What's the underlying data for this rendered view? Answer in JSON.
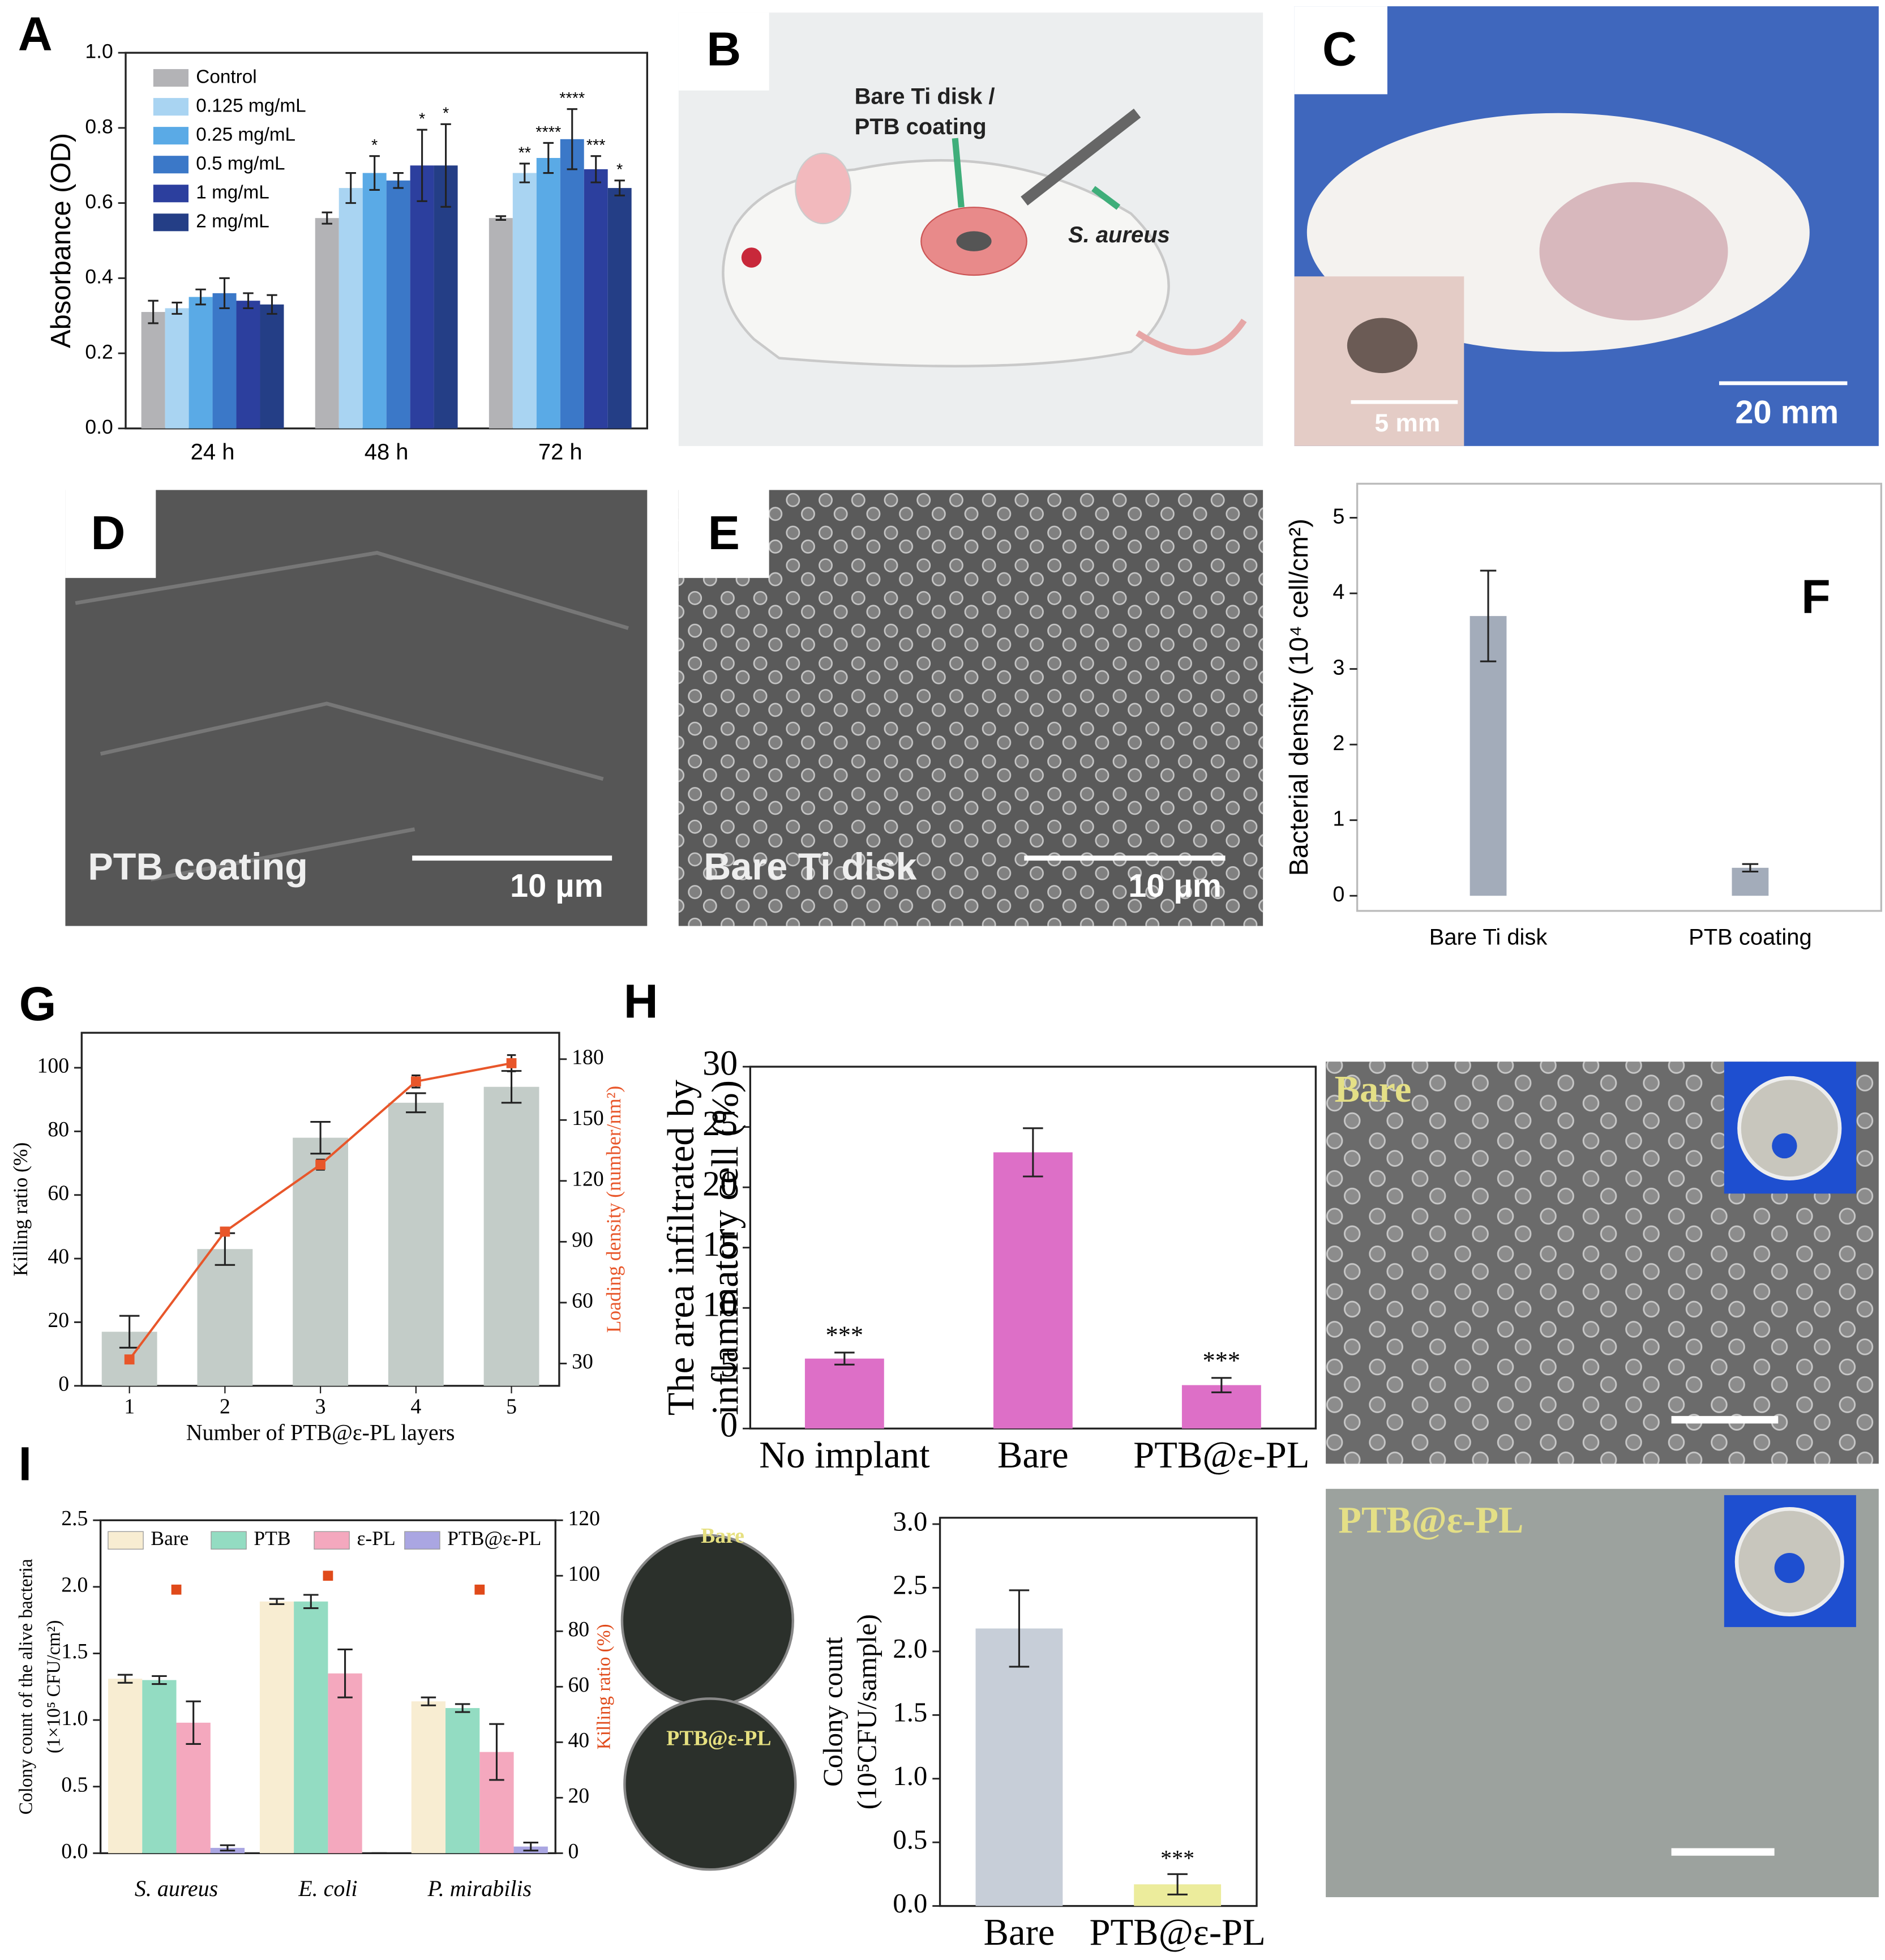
{
  "chart_data": [
    {
      "type": "bar",
      "panel": "A",
      "ylabel": "Absorbance (OD)",
      "categories": [
        "24 h",
        "48 h",
        "72 h"
      ],
      "ylim": [
        0,
        1
      ],
      "yticks": [
        {
          "value": 0,
          "label": "0.0"
        },
        0.2,
        0.4,
        0.6,
        0.8,
        {
          "value": 1,
          "label": "1.0"
        }
      ],
      "legend": "upper left",
      "series": [
        {
          "name": "Control",
          "color": "#b3b3b6",
          "values": [
            0.31,
            0.56,
            0.56
          ],
          "errors": [
            0.03,
            0.015,
            0.005
          ],
          "significance": [
            null,
            null,
            null
          ]
        },
        {
          "name": "0.125 mg/mL",
          "color": "#a9d4f2",
          "values": [
            0.32,
            0.64,
            0.68
          ],
          "errors": [
            0.015,
            0.04,
            0.025
          ],
          "significance": [
            null,
            null,
            "**"
          ]
        },
        {
          "name": "0.25 mg/mL",
          "color": "#5aaae6",
          "values": [
            0.35,
            0.68,
            0.72
          ],
          "errors": [
            0.02,
            0.045,
            0.04
          ],
          "significance": [
            null,
            "*",
            "****"
          ]
        },
        {
          "name": "0.5 mg/mL",
          "color": "#3b78c8",
          "values": [
            0.36,
            0.66,
            0.77
          ],
          "errors": [
            0.04,
            0.02,
            0.08
          ],
          "significance": [
            null,
            null,
            "****"
          ]
        },
        {
          "name": "1 mg/mL",
          "color": "#2c3f9e",
          "values": [
            0.34,
            0.7,
            0.69
          ],
          "errors": [
            0.02,
            0.095,
            0.035
          ],
          "significance": [
            null,
            "*",
            "***"
          ]
        },
        {
          "name": "2 mg/mL",
          "color": "#243e86",
          "values": [
            0.33,
            0.7,
            0.64
          ],
          "errors": [
            0.025,
            0.11,
            0.02
          ],
          "significance": [
            null,
            "*",
            "*"
          ]
        }
      ]
    },
    {
      "type": "bar",
      "panel": "F",
      "ylabel": "Bacterial density (10⁴ cell/cm²)",
      "categories": [
        "Bare Ti disk",
        "PTB coating"
      ],
      "ylim": [
        -0.2,
        5.45
      ],
      "yticks": [
        0,
        1,
        2,
        3,
        4,
        5
      ],
      "series": [
        {
          "color": "#a3acba",
          "values": [
            3.7,
            0.37
          ],
          "errors": [
            0.6,
            0.05
          ]
        }
      ]
    },
    {
      "type": "bar",
      "panel": "G",
      "xlabel": "Number of PTB@ε-PL layers",
      "ylabel": "Killing ratio (%)",
      "y2label": "Loading density (number/nm²)",
      "x": [
        1,
        2,
        3,
        4,
        5
      ],
      "xlim": [
        0.5,
        5.5
      ],
      "xticks": [
        1,
        2,
        3,
        4,
        5
      ],
      "ylim": [
        0,
        111
      ],
      "yticks": [
        0,
        20,
        40,
        60,
        80,
        100
      ],
      "y2lim": [
        19,
        193
      ],
      "y2ticks": [
        30,
        60,
        90,
        120,
        150,
        180
      ],
      "series": [
        {
          "color": "#c3ccc8",
          "values": [
            17,
            43,
            78,
            89,
            94
          ],
          "errors": [
            5,
            5,
            5,
            3,
            5
          ]
        },
        {
          "type": "line",
          "axis": "y2",
          "color": "#e8562a",
          "values": [
            32,
            95,
            128,
            169,
            178
          ],
          "errors": [
            1.5,
            2,
            2.5,
            3,
            4
          ]
        }
      ]
    },
    {
      "type": "bar",
      "panel": "H",
      "ylabel": [
        "The area infiltrated by",
        "inflammatory cell (%)"
      ],
      "categories": [
        "No implant",
        "Bare",
        "PTB@ε-PL"
      ],
      "ylim": [
        0,
        30
      ],
      "yticks": [
        0,
        5,
        10,
        15,
        20,
        25,
        30
      ],
      "series": [
        {
          "color": "#dd6fc7",
          "values": [
            5.8,
            22.9,
            3.6
          ],
          "errors": [
            0.5,
            2.0,
            0.6
          ],
          "significance": [
            "***",
            null,
            "***"
          ]
        }
      ]
    },
    {
      "type": "bar",
      "panel": "I",
      "ylabel": [
        "Colony count of the alive bacteria",
        "(1×10⁵ CFU/cm²)"
      ],
      "y2label": "Killing ratio (%)",
      "categories": [
        "S. aureus",
        "E. coli",
        "P. mirabilis"
      ],
      "ylim": [
        0,
        2.5
      ],
      "yticks": [
        {
          "value": 0,
          "label": "0.0"
        },
        0.5,
        {
          "value": 1,
          "label": "1.0"
        },
        1.5,
        {
          "value": 2,
          "label": "2.0"
        },
        2.5
      ],
      "y2lim": [
        0,
        120
      ],
      "y2ticks": [
        0,
        20,
        40,
        60,
        80,
        100,
        120
      ],
      "legend": "upper center",
      "series": [
        {
          "name": "Bare",
          "color": "#f8edd2",
          "values": [
            1.31,
            1.89,
            1.14
          ],
          "errors": [
            0.03,
            0.02,
            0.03
          ]
        },
        {
          "name": "PTB",
          "color": "#93dcc2",
          "values": [
            1.3,
            1.89,
            1.09
          ],
          "errors": [
            0.03,
            0.05,
            0.03
          ]
        },
        {
          "name": "ε-PL",
          "color": "#f4a8be",
          "values": [
            0.98,
            1.35,
            0.76
          ],
          "errors": [
            0.16,
            0.18,
            0.21
          ]
        },
        {
          "name": "PTB@ε-PL",
          "color": "#aaa6e2",
          "values": [
            0.04,
            0.0,
            0.05
          ],
          "errors": [
            0.02,
            0.0,
            0.03
          ]
        },
        {
          "type": "scatter",
          "axis": "y2",
          "color": "#e04a1a",
          "values": [
            95,
            100,
            95
          ]
        }
      ]
    },
    {
      "type": "bar",
      "ylabel": [
        "Colony count",
        "(10⁵CFU/sample)"
      ],
      "categories": [
        "Bare",
        "PTB@ε-PL"
      ],
      "ylim": [
        0,
        3.05
      ],
      "yticks": [
        {
          "value": 0,
          "label": "0.0"
        },
        0.5,
        {
          "value": 1,
          "label": "1.0"
        },
        1.5,
        {
          "value": 2,
          "label": "2.0"
        },
        2.5,
        {
          "value": 3,
          "label": "3.0"
        }
      ],
      "series": [
        {
          "colors": [
            "#c7ced8",
            "#ecec9c"
          ],
          "values": [
            2.18,
            0.17
          ],
          "errors": [
            0.3,
            0.08
          ],
          "significance": [
            null,
            "***"
          ]
        }
      ]
    }
  ],
  "images": {
    "B": {
      "panel": "B",
      "labels": [
        "Bare Ti disk /",
        "PTB coating",
        "S. aureus"
      ]
    },
    "C": {
      "panel": "C",
      "labels": [
        "5 mm",
        "20 mm"
      ]
    },
    "D": {
      "panel": "D",
      "labels": [
        "PTB coating",
        "10 µm"
      ]
    },
    "E": {
      "panel": "E",
      "labels": [
        "Bare Ti disk",
        "10 µm"
      ]
    },
    "sem": {
      "labels": [
        "Bare",
        "PTB@ε-PL"
      ]
    },
    "plates": {
      "labels": [
        "Bare",
        "PTB@ε-PL"
      ]
    }
  }
}
